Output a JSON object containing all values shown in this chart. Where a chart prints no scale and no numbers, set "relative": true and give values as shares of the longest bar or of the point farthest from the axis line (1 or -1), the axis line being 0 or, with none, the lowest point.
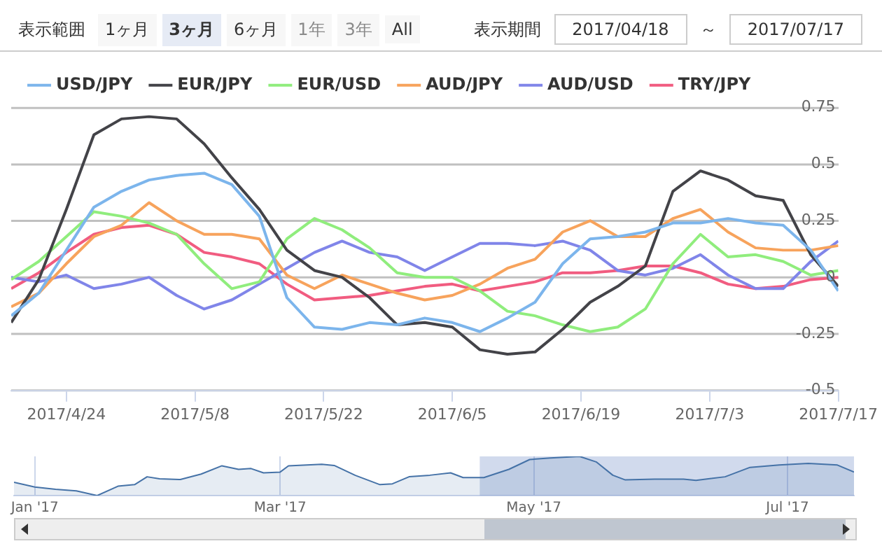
{
  "chart_data": [
    {
      "type": "line",
      "annotations": [
        "表示範囲",
        "1ヶ月",
        "3ヶ月",
        "6ヶ月",
        "1年",
        "3年",
        "All",
        "表示期間",
        "2017/04/18",
        "～",
        "2017/07/17"
      ],
      "x": [
        "2017-04-18",
        "2017-04-21",
        "2017-04-24",
        "2017-04-27",
        "2017-04-30",
        "2017-05-03",
        "2017-05-06",
        "2017-05-09",
        "2017-05-12",
        "2017-05-15",
        "2017-05-18",
        "2017-05-21",
        "2017-05-24",
        "2017-05-27",
        "2017-05-30",
        "2017-06-02",
        "2017-06-05",
        "2017-06-08",
        "2017-06-11",
        "2017-06-14",
        "2017-06-17",
        "2017-06-20",
        "2017-06-23",
        "2017-06-26",
        "2017-06-29",
        "2017-07-02",
        "2017-07-05",
        "2017-07-08",
        "2017-07-11",
        "2017-07-14",
        "2017-07-17"
      ],
      "series": [
        {
          "name": "USD/JPY",
          "color": "#7cb5ec",
          "values": [
            -0.17,
            -0.07,
            0.12,
            0.31,
            0.38,
            0.43,
            0.45,
            0.46,
            0.41,
            0.27,
            -0.09,
            -0.22,
            -0.23,
            -0.2,
            -0.21,
            -0.18,
            -0.2,
            -0.24,
            -0.18,
            -0.11,
            0.06,
            0.17,
            0.18,
            0.2,
            0.24,
            0.24,
            0.26,
            0.24,
            0.23,
            0.12,
            -0.06
          ]
        },
        {
          "name": "EUR/JPY",
          "color": "#434348",
          "values": [
            -0.2,
            -0.01,
            0.3,
            0.63,
            0.7,
            0.71,
            0.7,
            0.59,
            0.44,
            0.3,
            0.12,
            0.03,
            0.0,
            -0.09,
            -0.21,
            -0.2,
            -0.22,
            -0.32,
            -0.34,
            -0.33,
            -0.23,
            -0.11,
            -0.04,
            0.05,
            0.38,
            0.47,
            0.43,
            0.36,
            0.34,
            0.1,
            -0.04
          ]
        },
        {
          "name": "EUR/USD",
          "color": "#90ed7d",
          "values": [
            -0.01,
            0.07,
            0.18,
            0.29,
            0.27,
            0.24,
            0.19,
            0.06,
            -0.05,
            -0.02,
            0.17,
            0.26,
            0.21,
            0.13,
            0.02,
            0.0,
            0.0,
            -0.06,
            -0.15,
            -0.17,
            -0.21,
            -0.24,
            -0.22,
            -0.14,
            0.06,
            0.19,
            0.09,
            0.1,
            0.07,
            0.01,
            0.03
          ]
        },
        {
          "name": "AUD/JPY",
          "color": "#f7a35c",
          "values": [
            -0.13,
            -0.07,
            0.06,
            0.18,
            0.23,
            0.33,
            0.25,
            0.19,
            0.19,
            0.17,
            0.01,
            -0.05,
            0.01,
            -0.03,
            -0.07,
            -0.1,
            -0.08,
            -0.03,
            0.04,
            0.08,
            0.2,
            0.25,
            0.18,
            0.18,
            0.26,
            0.3,
            0.2,
            0.13,
            0.12,
            0.12,
            0.14
          ]
        },
        {
          "name": "AUD/USD",
          "color": "#8085e9",
          "values": [
            0.0,
            -0.02,
            0.01,
            -0.05,
            -0.03,
            0.0,
            -0.08,
            -0.14,
            -0.1,
            -0.03,
            0.04,
            0.11,
            0.16,
            0.11,
            0.09,
            0.03,
            0.09,
            0.15,
            0.15,
            0.14,
            0.16,
            0.12,
            0.03,
            0.01,
            0.04,
            0.1,
            0.01,
            -0.05,
            -0.05,
            0.07,
            0.16
          ]
        },
        {
          "name": "TRY/JPY",
          "color": "#f15c80",
          "values": [
            -0.05,
            0.02,
            0.11,
            0.19,
            0.22,
            0.23,
            0.19,
            0.11,
            0.09,
            0.06,
            -0.03,
            -0.1,
            -0.09,
            -0.08,
            -0.06,
            -0.04,
            -0.03,
            -0.06,
            -0.04,
            -0.02,
            0.02,
            0.02,
            0.03,
            0.05,
            0.05,
            0.02,
            -0.03,
            -0.05,
            -0.04,
            -0.01,
            0.0
          ]
        }
      ],
      "xlim": [
        "2017-04-18",
        "2017-07-17"
      ],
      "xticks": [
        {
          "value": "2017-04-24",
          "label": "2017/4/24"
        },
        {
          "value": "2017-05-08",
          "label": "2017/5/8"
        },
        {
          "value": "2017-05-22",
          "label": "2017/5/22"
        },
        {
          "value": "2017-06-05",
          "label": "2017/6/5"
        },
        {
          "value": "2017-06-19",
          "label": "2017/6/19"
        },
        {
          "value": "2017-07-03",
          "label": "2017/7/3"
        },
        {
          "value": "2017-07-17",
          "label": "2017/7/17"
        }
      ],
      "ylim": [
        -0.5,
        0.75
      ],
      "yticks": [
        -0.5,
        -0.25,
        0,
        0.25,
        0.5,
        0.75
      ],
      "grid": "y",
      "legend": "top"
    },
    {
      "type": "area",
      "relative": true,
      "x": [
        "2016-12-27",
        "2017-01-01",
        "2017-01-06",
        "2017-01-11",
        "2017-01-16",
        "2017-01-21",
        "2017-01-25",
        "2017-01-28",
        "2017-01-31",
        "2017-02-05",
        "2017-02-10",
        "2017-02-15",
        "2017-02-19",
        "2017-02-22",
        "2017-02-25",
        "2017-03-01",
        "2017-03-03",
        "2017-03-11",
        "2017-03-14",
        "2017-03-19",
        "2017-03-25",
        "2017-03-28",
        "2017-04-01",
        "2017-04-06",
        "2017-04-11",
        "2017-04-14",
        "2017-04-19",
        "2017-04-25",
        "2017-04-30",
        "2017-05-05",
        "2017-05-12",
        "2017-05-16",
        "2017-05-20",
        "2017-05-23",
        "2017-05-30",
        "2017-06-06",
        "2017-06-09",
        "2017-06-16",
        "2017-06-22",
        "2017-06-29",
        "2017-07-06",
        "2017-07-13",
        "2017-07-17"
      ],
      "series": [
        {
          "color": "#4572a7",
          "values": [
            0.34,
            0.22,
            0.16,
            0.12,
            0,
            0.24,
            0.28,
            0.48,
            0.43,
            0.41,
            0.55,
            0.76,
            0.67,
            0.69,
            0.58,
            0.6,
            0.76,
            0.8,
            0.77,
            0.52,
            0.28,
            0.3,
            0.48,
            0.52,
            0.58,
            0.46,
            0.46,
            0.67,
            0.92,
            0.96,
            1,
            0.86,
            0.52,
            0.4,
            0.42,
            0.42,
            0.39,
            0.48,
            0.72,
            0.78,
            0.82,
            0.78,
            0.6
          ]
        }
      ],
      "xlim": [
        "2016-12-27",
        "2017-07-17"
      ],
      "xticks": [
        {
          "value": "2017-01-01",
          "label": "Jan '17"
        },
        {
          "value": "2017-03-01",
          "label": "Mar '17"
        },
        {
          "value": "2017-05-01",
          "label": "May '17"
        },
        {
          "value": "2017-07-01",
          "label": "Jul '17"
        }
      ],
      "bands": [
        {
          "axis": "x",
          "from": "2017-04-18",
          "to": "2017-07-17",
          "color": "#6685c2"
        }
      ],
      "grid": "x",
      "tick_labels": "x"
    }
  ]
}
